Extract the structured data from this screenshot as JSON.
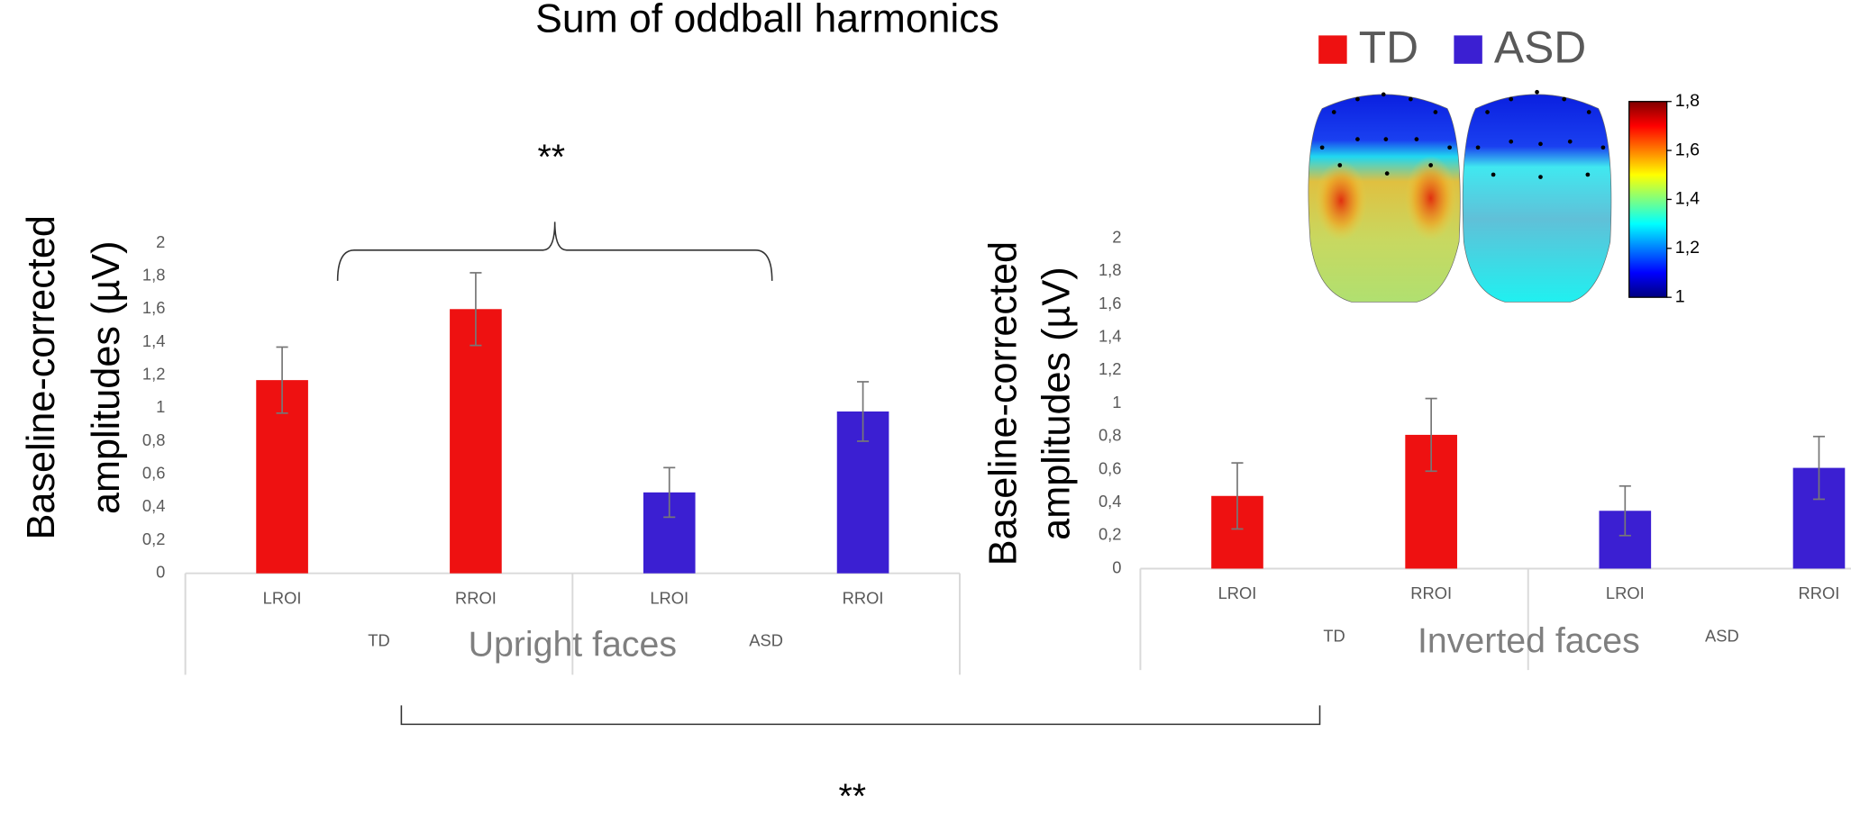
{
  "chart_data": [
    {
      "type": "bar",
      "title": "Sum of oddball harmonics",
      "categories": [
        "LROI",
        "RROI",
        "LROI",
        "RROI"
      ],
      "series": [
        {
          "name": "TD",
          "color": "#ee1111",
          "values": [
            1.17,
            1.6,
            null,
            null
          ],
          "errors": [
            0.2,
            0.22,
            null,
            null
          ]
        },
        {
          "name": "ASD",
          "color": "#3b1fd2",
          "values": [
            null,
            null,
            0.49,
            0.98
          ],
          "errors": [
            null,
            null,
            0.15,
            0.18
          ]
        }
      ],
      "x_label": "Upright faces",
      "y_label": [
        "Baseline-corrected",
        "amplitudes (µV)"
      ],
      "ylim": [
        0,
        2
      ],
      "yticks": [
        0,
        {
          "value": 0.2,
          "label": "0,2"
        },
        {
          "value": 0.4,
          "label": "0,4"
        },
        {
          "value": 0.6,
          "label": "0,6"
        },
        {
          "value": 0.8,
          "label": "0,8"
        },
        1,
        {
          "value": 1.2,
          "label": "1,2"
        },
        {
          "value": 1.4,
          "label": "1,4"
        },
        {
          "value": 1.6,
          "label": "1,6"
        },
        {
          "value": 1.8,
          "label": "1,8"
        },
        2
      ],
      "annotations": [
        "**"
      ]
    },
    {
      "type": "bar",
      "categories": [
        "LROI",
        "RROI",
        "LROI",
        "RROI"
      ],
      "series": [
        {
          "name": "TD",
          "color": "#ee1111",
          "values": [
            0.44,
            0.81,
            null,
            null
          ],
          "errors": [
            0.2,
            0.22,
            null,
            null
          ]
        },
        {
          "name": "ASD",
          "color": "#3b1fd2",
          "values": [
            null,
            null,
            0.35,
            0.61
          ],
          "errors": [
            null,
            null,
            0.15,
            0.19
          ]
        }
      ],
      "x_label": "Inverted faces",
      "y_label": [
        "Baseline-corrected",
        "amplitudes (µV)"
      ],
      "ylim": [
        0,
        2
      ],
      "yticks": [
        0,
        {
          "value": 0.2,
          "label": "0,2"
        },
        {
          "value": 0.4,
          "label": "0,4"
        },
        {
          "value": 0.6,
          "label": "0,6"
        },
        {
          "value": 0.8,
          "label": "0,8"
        },
        1,
        {
          "value": 1.2,
          "label": "1,2"
        },
        {
          "value": 1.4,
          "label": "1,4"
        },
        {
          "value": 1.6,
          "label": "1,6"
        },
        {
          "value": 1.8,
          "label": "1,8"
        },
        2
      ],
      "annotations": [
        "**"
      ]
    },
    {
      "type": "colorbar",
      "colormap": "jet",
      "ylim": [
        1,
        1.8
      ],
      "yticks": [
        1,
        {
          "value": 1.2,
          "label": "1,2"
        },
        {
          "value": 1.4,
          "label": "1,4"
        },
        {
          "value": 1.6,
          "label": "1,6"
        },
        {
          "value": 1.8,
          "label": "1,8"
        }
      ]
    }
  ]
}
